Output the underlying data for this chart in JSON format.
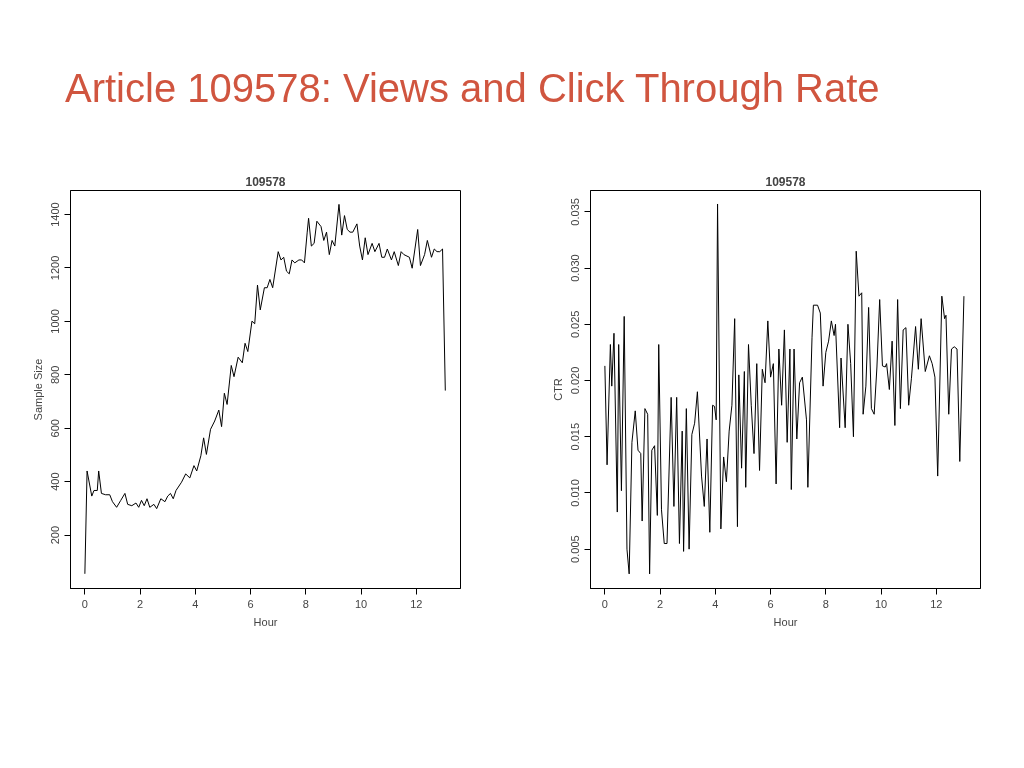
{
  "chart_data": [
    {
      "type": "line",
      "title": "109578",
      "xlabel": "Hour",
      "ylabel": "Sample Size",
      "annotations": [
        "Article 109578: Views and Click Through Rate"
      ],
      "x": [
        0,
        0.08,
        0.25,
        0.33,
        0.45,
        0.5,
        0.6,
        0.75,
        0.9,
        1.0,
        1.15,
        1.3,
        1.45,
        1.55,
        1.7,
        1.85,
        1.95,
        2.05,
        2.15,
        2.25,
        2.35,
        2.5,
        2.6,
        2.75,
        2.9,
        3.0,
        3.1,
        3.2,
        3.3,
        3.5,
        3.65,
        3.8,
        3.95,
        4.05,
        4.2,
        4.3,
        4.4,
        4.55,
        4.7,
        4.85,
        4.95,
        5.05,
        5.15,
        5.3,
        5.4,
        5.55,
        5.7,
        5.8,
        5.9,
        6.05,
        6.15,
        6.25,
        6.35,
        6.5,
        6.6,
        6.7,
        6.8,
        7.0,
        7.1,
        7.2,
        7.3,
        7.4,
        7.5,
        7.6,
        7.75,
        7.85,
        7.95,
        8.05,
        8.1,
        8.2,
        8.3,
        8.4,
        8.55,
        8.65,
        8.75,
        8.85,
        8.95,
        9.05,
        9.2,
        9.3,
        9.4,
        9.5,
        9.6,
        9.7,
        9.85,
        9.95,
        10.05,
        10.15,
        10.25,
        10.4,
        10.5,
        10.65,
        10.75,
        10.85,
        10.95,
        11.1,
        11.2,
        11.35,
        11.45,
        11.55,
        11.75,
        11.85,
        11.95,
        12.05,
        12.15,
        12.3,
        12.4,
        12.55,
        12.65,
        12.75,
        12.85,
        12.95,
        13.05
      ],
      "series": [
        {
          "color": "#000000",
          "values": [
            55,
            440,
            346,
            367,
            367,
            440,
            356,
            351,
            351,
            325,
            304,
            330,
            356,
            315,
            310,
            320,
            304,
            330,
            310,
            336,
            304,
            315,
            299,
            336,
            325,
            346,
            356,
            336,
            367,
            398,
            429,
            414,
            460,
            440,
            497,
            564,
            502,
            596,
            627,
            668,
            606,
            731,
            689,
            835,
            793,
            866,
            845,
            918,
            887,
            1001,
            991,
            1136,
            1043,
            1126,
            1126,
            1157,
            1126,
            1261,
            1230,
            1240,
            1188,
            1178,
            1230,
            1219,
            1230,
            1230,
            1219,
            1334,
            1386,
            1282,
            1292,
            1375,
            1355,
            1303,
            1334,
            1250,
            1303,
            1282,
            1438,
            1323,
            1396,
            1344,
            1334,
            1334,
            1365,
            1282,
            1230,
            1313,
            1250,
            1292,
            1261,
            1292,
            1240,
            1240,
            1271,
            1230,
            1261,
            1209,
            1261,
            1250,
            1240,
            1199,
            1271,
            1344,
            1209,
            1250,
            1303,
            1240,
            1271,
            1261,
            1261,
            1271,
            741
          ]
        }
      ],
      "xlim": [
        -0.52,
        13.6
      ],
      "ylim": [
        0,
        1490
      ],
      "xticks": [
        0,
        2,
        4,
        6,
        8,
        10,
        12
      ],
      "yticks": [
        200,
        400,
        600,
        800,
        1000,
        1200,
        1400
      ],
      "grid": false,
      "marker": "none",
      "line_style": "solid"
    },
    {
      "type": "line",
      "title": "109578",
      "xlabel": "Hour",
      "ylabel": "CTR",
      "x": [
        0,
        0.08,
        0.2,
        0.25,
        0.33,
        0.45,
        0.5,
        0.6,
        0.7,
        0.8,
        0.88,
        0.98,
        1.1,
        1.2,
        1.3,
        1.35,
        1.45,
        1.55,
        1.62,
        1.7,
        1.8,
        1.9,
        1.95,
        2.05,
        2.15,
        2.25,
        2.4,
        2.5,
        2.6,
        2.7,
        2.8,
        2.85,
        2.95,
        3.05,
        3.15,
        3.25,
        3.35,
        3.5,
        3.6,
        3.7,
        3.8,
        3.9,
        3.97,
        4.03,
        4.08,
        4.2,
        4.3,
        4.4,
        4.5,
        4.6,
        4.7,
        4.8,
        4.85,
        4.95,
        5.05,
        5.1,
        5.2,
        5.3,
        5.4,
        5.5,
        5.6,
        5.7,
        5.8,
        5.9,
        6.0,
        6.1,
        6.2,
        6.3,
        6.4,
        6.5,
        6.6,
        6.7,
        6.75,
        6.85,
        6.95,
        7.05,
        7.15,
        7.3,
        7.35,
        7.5,
        7.55,
        7.7,
        7.8,
        7.9,
        8.0,
        8.1,
        8.2,
        8.3,
        8.35,
        8.5,
        8.55,
        8.7,
        8.8,
        8.9,
        9.0,
        9.1,
        9.2,
        9.3,
        9.35,
        9.45,
        9.55,
        9.65,
        9.75,
        9.85,
        9.95,
        10.05,
        10.15,
        10.2,
        10.3,
        10.4,
        10.5,
        10.6,
        10.7,
        10.8,
        10.9,
        11.0,
        11.1,
        11.25,
        11.35,
        11.45,
        11.6,
        11.75,
        11.85,
        11.95,
        12.05,
        12.2,
        12.3,
        12.35,
        12.45,
        12.55,
        12.65,
        12.75,
        12.85,
        13.0
      ],
      "series": [
        {
          "color": "#000000",
          "values": [
            0.0213,
            0.0125,
            0.0232,
            0.0195,
            0.0242,
            0.0083,
            0.0232,
            0.0102,
            0.0257,
            0.005,
            0.0028,
            0.0145,
            0.0173,
            0.0138,
            0.0135,
            0.0075,
            0.0175,
            0.017,
            0.0028,
            0.0138,
            0.0142,
            0.008,
            0.0232,
            0.0085,
            0.0055,
            0.0055,
            0.0185,
            0.0088,
            0.0185,
            0.0055,
            0.0155,
            0.0048,
            0.0175,
            0.005,
            0.0152,
            0.0162,
            0.019,
            0.0115,
            0.0088,
            0.0148,
            0.0065,
            0.0178,
            0.0177,
            0.0165,
            0.0357,
            0.0068,
            0.0132,
            0.011,
            0.0155,
            0.0178,
            0.0255,
            0.007,
            0.0205,
            0.0122,
            0.0208,
            0.0105,
            0.0232,
            0.0178,
            0.0135,
            0.0215,
            0.012,
            0.021,
            0.0198,
            0.0253,
            0.0203,
            0.0215,
            0.0108,
            0.0228,
            0.0178,
            0.0245,
            0.0145,
            0.0228,
            0.0103,
            0.0228,
            0.0148,
            0.0198,
            0.0203,
            0.0165,
            0.0105,
            0.0238,
            0.0267,
            0.0267,
            0.026,
            0.0195,
            0.0225,
            0.0235,
            0.0253,
            0.024,
            0.025,
            0.0158,
            0.022,
            0.0158,
            0.025,
            0.0215,
            0.015,
            0.0315,
            0.0275,
            0.0278,
            0.017,
            0.0195,
            0.0265,
            0.0175,
            0.017,
            0.0212,
            0.0272,
            0.0213,
            0.0212,
            0.0215,
            0.0192,
            0.0235,
            0.016,
            0.0272,
            0.0175,
            0.0245,
            0.0247,
            0.0178,
            0.0202,
            0.0248,
            0.021,
            0.0255,
            0.0208,
            0.0222,
            0.0215,
            0.0203,
            0.0115,
            0.0275,
            0.0255,
            0.0258,
            0.017,
            0.0228,
            0.023,
            0.0228,
            0.0128,
            0.0275
          ]
        }
      ],
      "xlim": [
        -0.52,
        13.6
      ],
      "ylim": [
        0.0015,
        0.0369
      ],
      "xticks": [
        0,
        2,
        4,
        6,
        8,
        10,
        12
      ],
      "yticks": [
        0.005,
        {
          "value": 0.01,
          "label": "0.010"
        },
        0.015,
        {
          "value": 0.02,
          "label": "0.020"
        },
        0.025,
        {
          "value": 0.03,
          "label": "0.030"
        },
        0.035
      ],
      "grid": false,
      "marker": "none",
      "line_style": "solid"
    }
  ]
}
